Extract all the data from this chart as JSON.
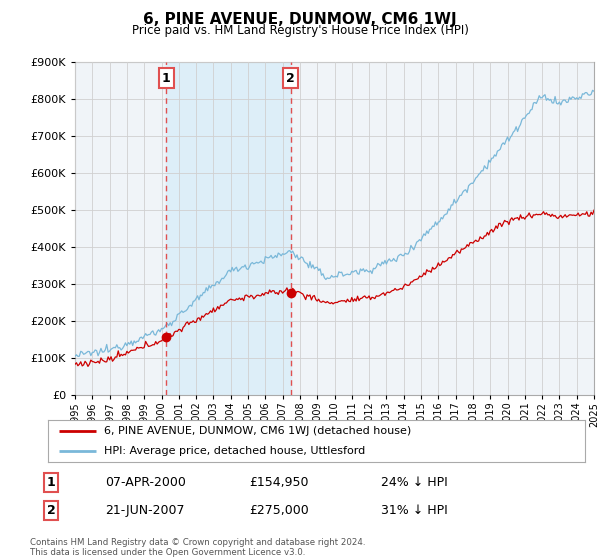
{
  "title": "6, PINE AVENUE, DUNMOW, CM6 1WJ",
  "subtitle": "Price paid vs. HM Land Registry's House Price Index (HPI)",
  "legend_line1": "6, PINE AVENUE, DUNMOW, CM6 1WJ (detached house)",
  "legend_line2": "HPI: Average price, detached house, Uttlesford",
  "annotation1_label": "1",
  "annotation1_date": "07-APR-2000",
  "annotation1_price": "£154,950",
  "annotation1_hpi": "24% ↓ HPI",
  "annotation2_label": "2",
  "annotation2_date": "21-JUN-2007",
  "annotation2_price": "£275,000",
  "annotation2_hpi": "31% ↓ HPI",
  "footer": "Contains HM Land Registry data © Crown copyright and database right 2024.\nThis data is licensed under the Open Government Licence v3.0.",
  "hpi_color": "#7ab8d9",
  "hpi_fill_color": "#ddeef8",
  "price_color": "#cc0000",
  "annotation_color": "#e05050",
  "vline_color": "#e05050",
  "ylim_min": 0,
  "ylim_max": 900000,
  "sale1_year": 2000.27,
  "sale1_price": 154950,
  "sale2_year": 2007.47,
  "sale2_price": 275000,
  "background_color": "#ffffff",
  "grid_color": "#d0d0d0",
  "plot_bg_color": "#f0f4f8"
}
